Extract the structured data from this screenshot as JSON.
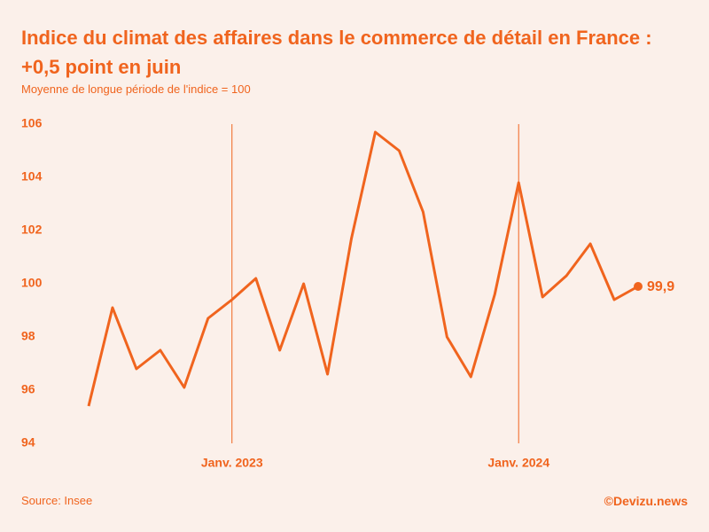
{
  "chart_data": {
    "type": "line",
    "title": "Indice du climat des affaires dans le commerce de détail en France : +0,5 point en juin",
    "subtitle": "Moyenne de longue période de l'indice = 100",
    "source": "Source: Insee",
    "credit": "©Devizu.news",
    "categories": [
      null,
      null,
      null,
      null,
      null,
      null,
      "Janv. 2023",
      null,
      null,
      null,
      null,
      null,
      null,
      null,
      null,
      null,
      null,
      null,
      "Janv. 2024",
      null,
      null,
      null,
      null,
      null
    ],
    "values": [
      95.4,
      99.1,
      96.8,
      97.5,
      96.1,
      98.7,
      99.4,
      100.2,
      97.5,
      100.0,
      96.6,
      101.7,
      105.7,
      105.0,
      102.7,
      98.0,
      96.5,
      99.6,
      103.8,
      99.5,
      100.3,
      101.5,
      99.4,
      99.9
    ],
    "value_labels": [
      null,
      null,
      null,
      null,
      null,
      null,
      null,
      null,
      null,
      null,
      null,
      null,
      null,
      null,
      null,
      null,
      null,
      null,
      null,
      null,
      null,
      null,
      null,
      "99,9"
    ],
    "color": "#f0641e",
    "ylim": [
      94,
      106
    ],
    "yticks": [
      94,
      96,
      98,
      100,
      102,
      104,
      106
    ],
    "grid": false
  }
}
